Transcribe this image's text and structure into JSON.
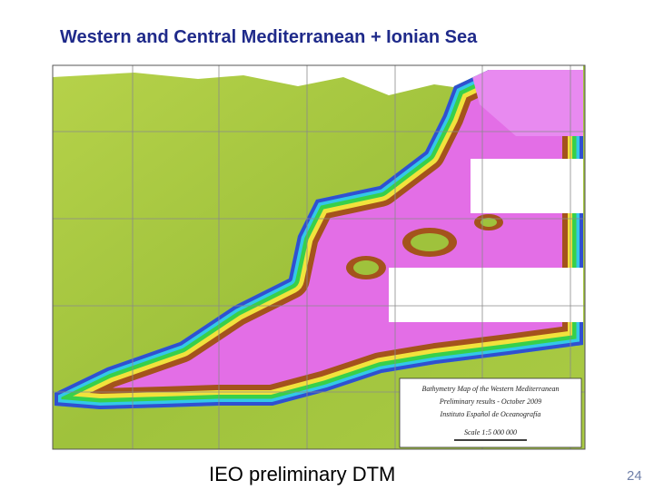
{
  "header": {
    "title": "Western and Central Mediterranean + Ionian Sea"
  },
  "map": {
    "legend": [
      "Bathymetry Map of the Western Mediterranean",
      "Preliminary results - October 2009",
      "Instituto Español de Oceanografía",
      "Scale 1:5 000 000"
    ]
  },
  "footer": {
    "caption": "IEO preliminary DTM",
    "page_number": "24"
  }
}
